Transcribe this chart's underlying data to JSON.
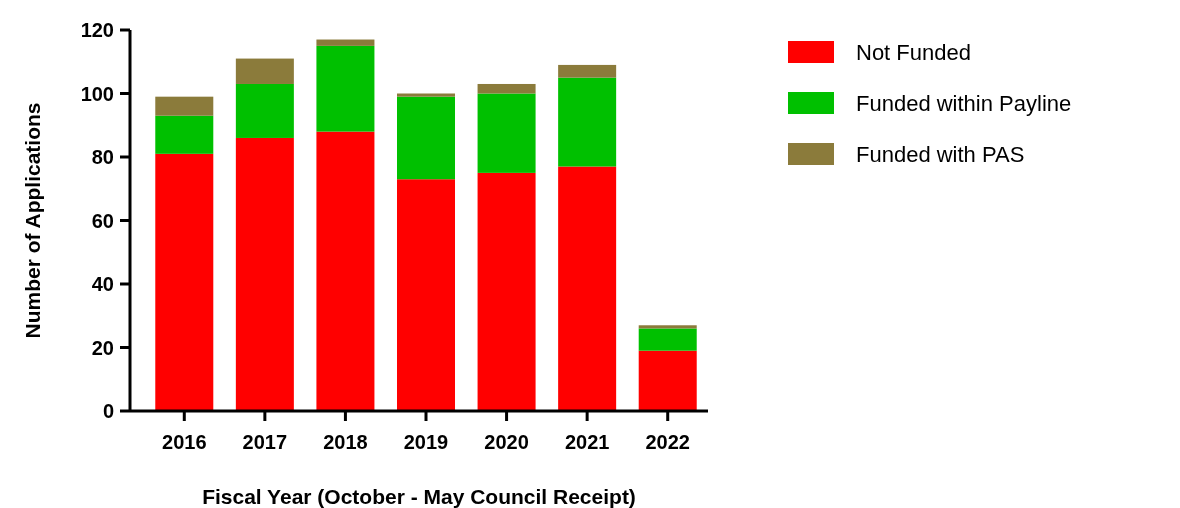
{
  "chart_data": {
    "type": "bar",
    "stacked": true,
    "xlabel": "Fiscal Year (October - May Council Receipt)",
    "ylabel": "Number of Applications",
    "categories": [
      "2016",
      "2017",
      "2018",
      "2019",
      "2020",
      "2021",
      "2022"
    ],
    "series": [
      {
        "name": "Not Funded",
        "color": "#ff0000",
        "values": [
          81,
          86,
          88,
          73,
          75,
          77,
          19
        ]
      },
      {
        "name": "Funded within Payline",
        "color": "#00c000",
        "values": [
          12,
          17,
          27,
          26,
          25,
          28,
          7
        ]
      },
      {
        "name": "Funded with PAS",
        "color": "#8b7b3b",
        "values": [
          6,
          8,
          2,
          1,
          3,
          4,
          1
        ]
      }
    ],
    "ylim": [
      0,
      120
    ],
    "yticks": [
      0,
      20,
      40,
      60,
      80,
      100,
      120
    ],
    "legend": "right",
    "grid": false
  }
}
